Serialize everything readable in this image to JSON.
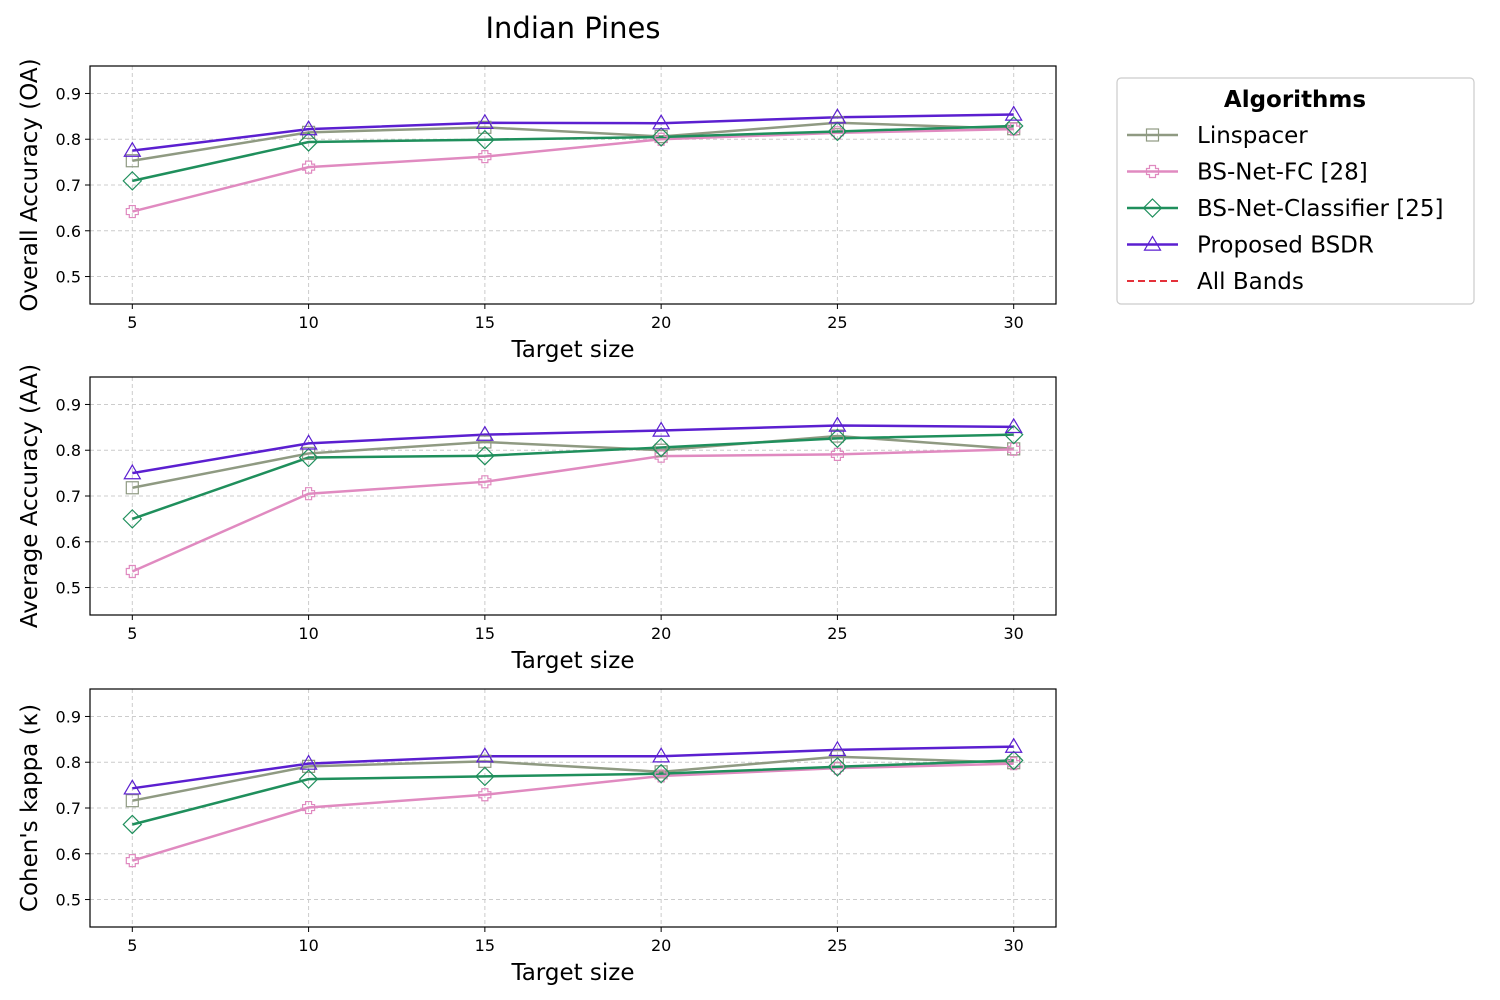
{
  "chart_data": {
    "type": "line",
    "title": "Indian Pines",
    "x": [
      5,
      10,
      15,
      20,
      25,
      30
    ],
    "xlim": [
      3.8,
      31.2
    ],
    "ylim": [
      0.44,
      0.96
    ],
    "yticks": [
      0.5,
      0.6,
      0.7,
      0.8,
      0.9
    ],
    "grid": true,
    "legend": {
      "title": "Algorithms",
      "placement": "outside-top-right",
      "entries": [
        {
          "name": "Linspacer",
          "color": "#8f9a82",
          "marker": "square",
          "dashed": false
        },
        {
          "name": "BS-Net-FC [28]",
          "color": "#e08ac0",
          "marker": "plus",
          "dashed": false
        },
        {
          "name": "BS-Net-Classifier [25]",
          "color": "#1f8f5c",
          "marker": "diamond",
          "dashed": false
        },
        {
          "name": "Proposed BSDR",
          "color": "#5b1fd0",
          "marker": "triangle",
          "dashed": false
        },
        {
          "name": "All Bands",
          "color": "#e0141e",
          "marker": "none",
          "dashed": true
        }
      ]
    },
    "panels": [
      {
        "ylabel": "Overall Accuracy (OA)",
        "xlabel": "Target size",
        "series": [
          {
            "name": "Linspacer",
            "values": [
              0.753,
              0.815,
              0.826,
              0.806,
              0.836,
              0.823
            ]
          },
          {
            "name": "BS-Net-FC [28]",
            "values": [
              0.642,
              0.739,
              0.762,
              0.8,
              0.814,
              0.822
            ]
          },
          {
            "name": "BS-Net-Classifier [25]",
            "values": [
              0.709,
              0.794,
              0.799,
              0.805,
              0.817,
              0.829
            ]
          },
          {
            "name": "Proposed BSDR",
            "values": [
              0.775,
              0.822,
              0.836,
              0.835,
              0.848,
              0.854
            ]
          }
        ]
      },
      {
        "ylabel": "Average Accuracy (AA)",
        "xlabel": "Target size",
        "series": [
          {
            "name": "Linspacer",
            "values": [
              0.718,
              0.793,
              0.818,
              0.8,
              0.831,
              0.803
            ]
          },
          {
            "name": "BS-Net-FC [28]",
            "values": [
              0.535,
              0.705,
              0.731,
              0.787,
              0.791,
              0.802
            ]
          },
          {
            "name": "BS-Net-Classifier [25]",
            "values": [
              0.65,
              0.784,
              0.788,
              0.806,
              0.826,
              0.834
            ]
          },
          {
            "name": "Proposed BSDR",
            "values": [
              0.75,
              0.815,
              0.834,
              0.843,
              0.854,
              0.851
            ]
          }
        ]
      },
      {
        "ylabel": "Cohen's kappa (κ)",
        "xlabel": "Target size",
        "series": [
          {
            "name": "Linspacer",
            "values": [
              0.716,
              0.791,
              0.802,
              0.779,
              0.812,
              0.799
            ]
          },
          {
            "name": "BS-Net-FC [28]",
            "values": [
              0.585,
              0.701,
              0.729,
              0.77,
              0.787,
              0.797
            ]
          },
          {
            "name": "BS-Net-Classifier [25]",
            "values": [
              0.664,
              0.763,
              0.769,
              0.775,
              0.79,
              0.804
            ]
          },
          {
            "name": "Proposed BSDR",
            "values": [
              0.743,
              0.797,
              0.813,
              0.813,
              0.827,
              0.834
            ]
          }
        ]
      }
    ]
  }
}
